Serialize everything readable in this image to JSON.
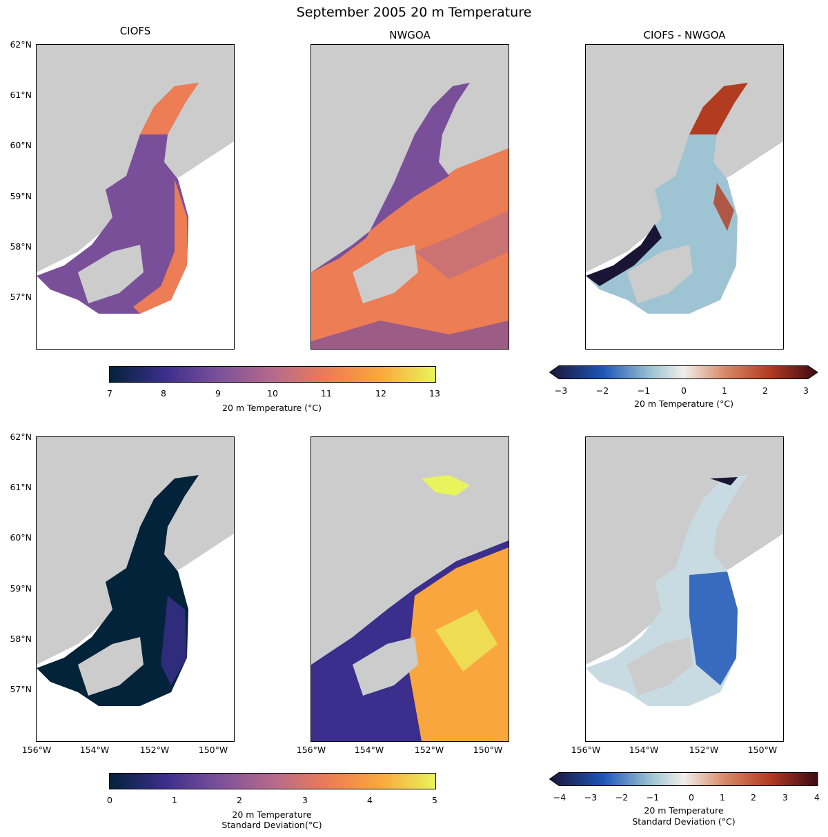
{
  "figure": {
    "title": "September 2005 20 m Temperature"
  },
  "panel_titles": [
    "CIOFS",
    "NWGOA",
    "CIOFS - NWGOA"
  ],
  "lat_labels": [
    "62°N",
    "61°N",
    "60°N",
    "59°N",
    "58°N",
    "57°N"
  ],
  "lon_labels": [
    "156°W",
    "154°W",
    "152°W",
    "150°W"
  ],
  "colorbars": {
    "temp": {
      "ticks": [
        "7",
        "8",
        "9",
        "10",
        "11",
        "12",
        "13"
      ],
      "label": "20 m Temperature (°C)"
    },
    "temp_diff": {
      "ticks": [
        "−3",
        "−2",
        "−1",
        "0",
        "1",
        "2",
        "3"
      ],
      "label": "20 m Temperature (°C)"
    },
    "std": {
      "ticks": [
        "0",
        "1",
        "2",
        "3",
        "4",
        "5"
      ],
      "label_line1": "20 m Temperature",
      "label_line2": "Standard Deviation(°C)"
    },
    "std_diff": {
      "ticks": [
        "−4",
        "−3",
        "−2",
        "−1",
        "0",
        "1",
        "2",
        "3",
        "4"
      ],
      "label_line1": "20 m Temperature",
      "label_line2": "Standard Deviation (°C)"
    }
  },
  "colors": {
    "land": "#cccccc",
    "temp_cmap": [
      "#03233a",
      "#3b2e8c",
      "#7a4f9a",
      "#b56a8c",
      "#ec7d54",
      "#faa63e",
      "#e8f45c"
    ],
    "diff_cmap": [
      "#1a1535",
      "#1e56b8",
      "#9ec4d3",
      "#f0eeec",
      "#d98b6a",
      "#b23c20",
      "#3c0913"
    ]
  }
}
